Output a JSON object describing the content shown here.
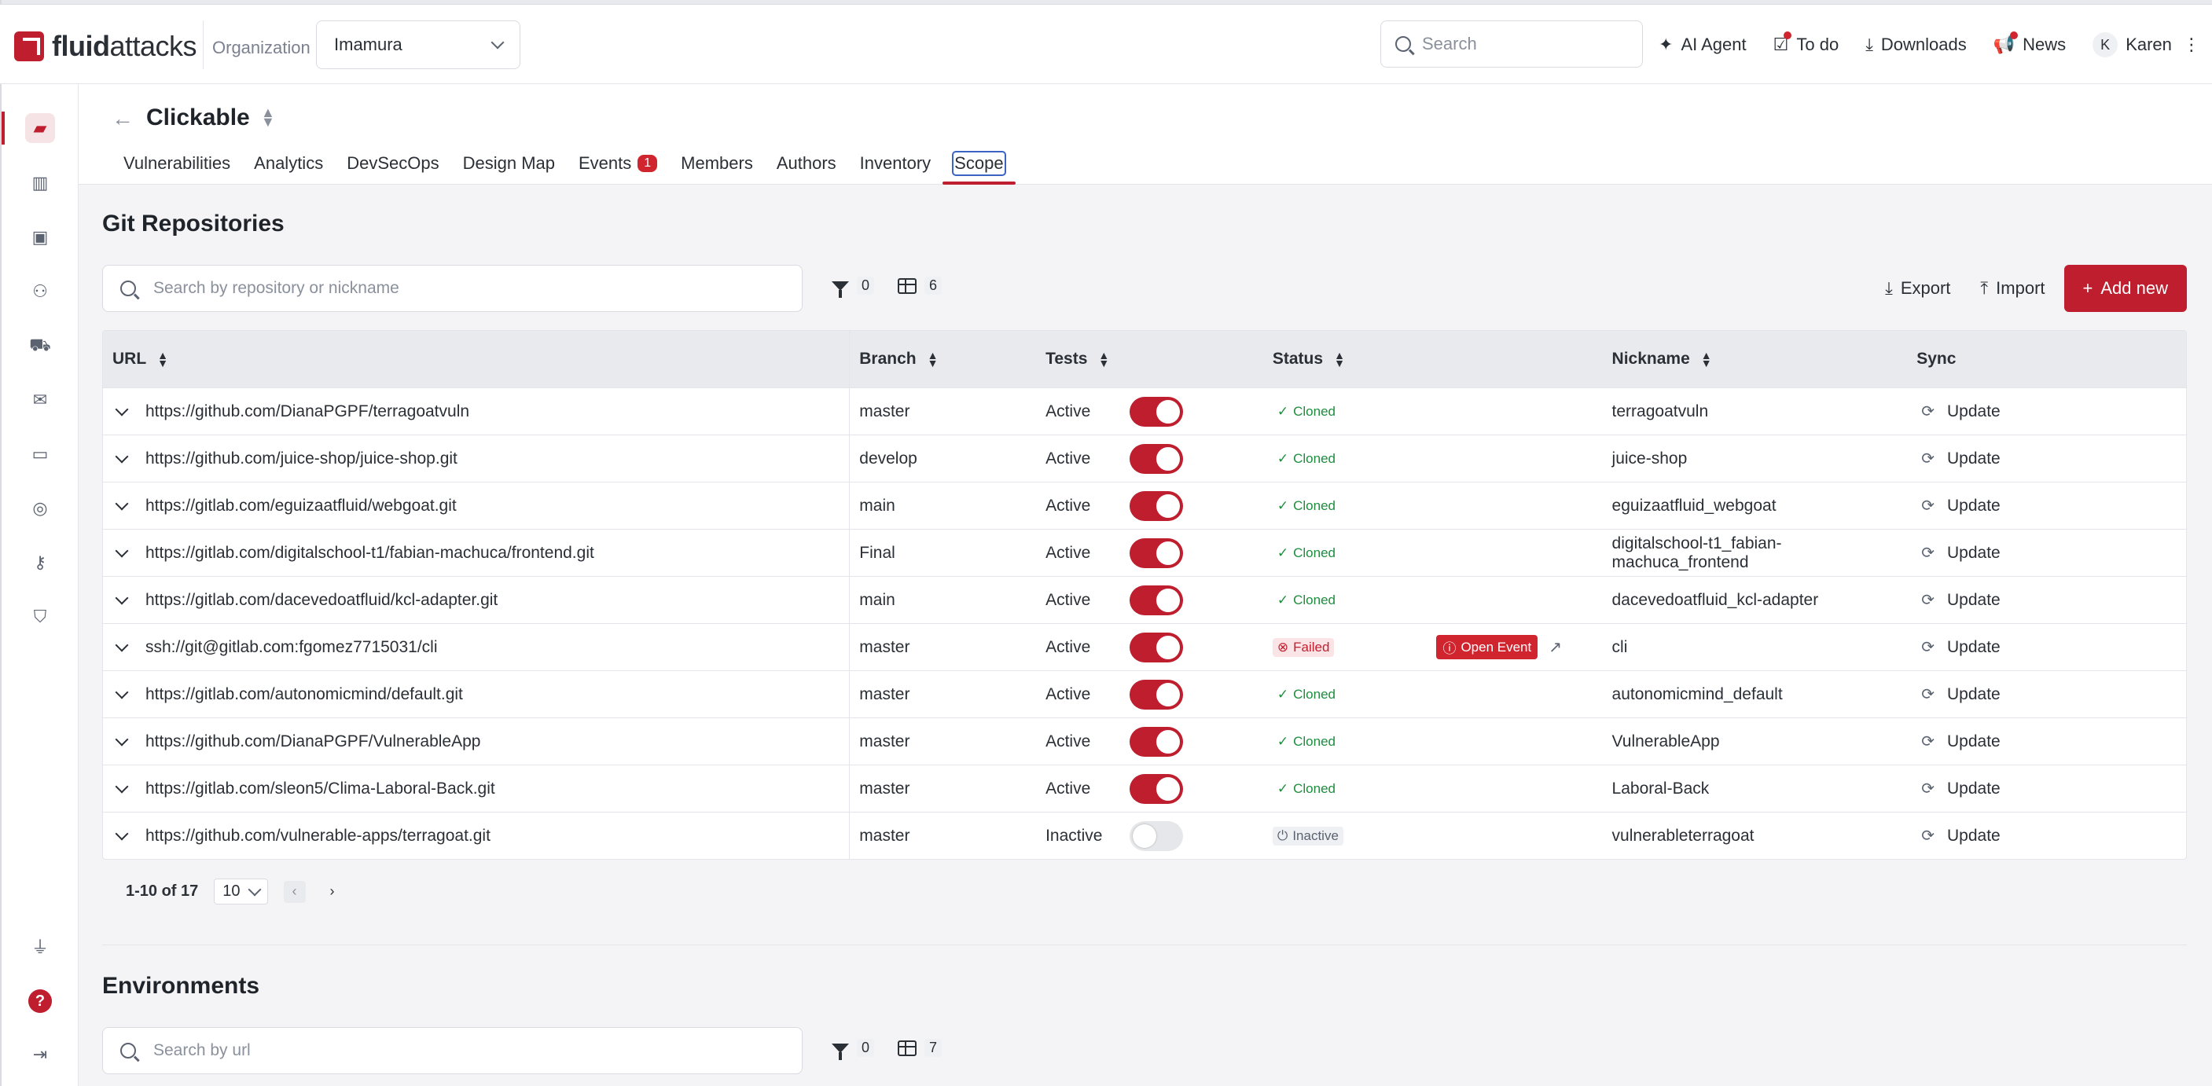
{
  "header": {
    "logo_text_bold": "fluid",
    "logo_text_rest": "attacks",
    "org_label": "Organization",
    "org_value": "Imamura",
    "search_placeholder": "Search",
    "actions": [
      {
        "label": "AI Agent",
        "icon": "sparkle-icon"
      },
      {
        "label": "To do",
        "icon": "clipboard-check-icon"
      },
      {
        "label": "Downloads",
        "icon": "download-icon"
      },
      {
        "label": "News",
        "icon": "megaphone-icon"
      }
    ],
    "user_initial": "K",
    "user_name": "Karen"
  },
  "group": {
    "title": "Clickable",
    "tabs": [
      {
        "label": "Vulnerabilities"
      },
      {
        "label": "Analytics"
      },
      {
        "label": "DevSecOps"
      },
      {
        "label": "Design Map"
      },
      {
        "label": "Events",
        "badge": "1"
      },
      {
        "label": "Members"
      },
      {
        "label": "Authors"
      },
      {
        "label": "Inventory"
      },
      {
        "label": "Scope",
        "active": true
      }
    ]
  },
  "git": {
    "title": "Git Repositories",
    "search_placeholder": "Search by repository or nickname",
    "filter_count": "0",
    "columns_count": "6",
    "export_label": "Export",
    "import_label": "Import",
    "add_label": "Add new",
    "columns": [
      "URL",
      "Branch",
      "Tests",
      "Status",
      "Nickname",
      "Sync"
    ],
    "rows": [
      {
        "url": "https://github.com/DianaPGPF/terragoatvuln",
        "branch": "master",
        "tests": "Active",
        "on": true,
        "status": "Cloned",
        "nickname": "terragoatvuln",
        "sync": "Update"
      },
      {
        "url": "https://github.com/juice-shop/juice-shop.git",
        "branch": "develop",
        "tests": "Active",
        "on": true,
        "status": "Cloned",
        "nickname": "juice-shop",
        "sync": "Update"
      },
      {
        "url": "https://gitlab.com/eguizaatfluid/webgoat.git",
        "branch": "main",
        "tests": "Active",
        "on": true,
        "status": "Cloned",
        "nickname": "eguizaatfluid_webgoat",
        "sync": "Update"
      },
      {
        "url": "https://gitlab.com/digitalschool-t1/fabian-machuca/frontend.git",
        "branch": "Final",
        "tests": "Active",
        "on": true,
        "status": "Cloned",
        "nickname": "digitalschool-t1_fabian-machuca_frontend",
        "nickname_line1": "digitalschool-t1_fabian-",
        "nickname_line2": "machuca_frontend",
        "sync": "Update"
      },
      {
        "url": "https://gitlab.com/dacevedoatfluid/kcl-adapter.git",
        "branch": "main",
        "tests": "Active",
        "on": true,
        "status": "Cloned",
        "nickname": "dacevedoatfluid_kcl-adapter",
        "sync": "Update"
      },
      {
        "url": "ssh://git@gitlab.com:fgomez7715031/cli",
        "branch": "master",
        "tests": "Active",
        "on": true,
        "status": "Failed",
        "event": "Open Event",
        "nickname": "cli",
        "sync": "Update"
      },
      {
        "url": "https://gitlab.com/autonomicmind/default.git",
        "branch": "master",
        "tests": "Active",
        "on": true,
        "status": "Cloned",
        "nickname": "autonomicmind_default",
        "sync": "Update"
      },
      {
        "url": "https://github.com/DianaPGPF/VulnerableApp",
        "branch": "master",
        "tests": "Active",
        "on": true,
        "status": "Cloned",
        "nickname": "VulnerableApp",
        "sync": "Update"
      },
      {
        "url": "https://gitlab.com/sleon5/Clima-Laboral-Back.git",
        "branch": "master",
        "tests": "Active",
        "on": true,
        "status": "Cloned",
        "nickname": "Laboral-Back",
        "sync": "Update"
      },
      {
        "url": "https://github.com/vulnerable-apps/terragoat.git",
        "branch": "master",
        "tests": "Inactive",
        "on": false,
        "status": "Inactive",
        "nickname": "vulnerableterragoat",
        "sync": "Update"
      }
    ],
    "pager": {
      "range": "1-10 of 17",
      "page_size": "10"
    }
  },
  "environments": {
    "title": "Environments",
    "search_placeholder": "Search by url",
    "filter_count": "0",
    "columns_count": "7"
  },
  "colors": {
    "brand": "#bf1e2e",
    "success": "#1e8e3e",
    "danger": "#d0242f"
  }
}
